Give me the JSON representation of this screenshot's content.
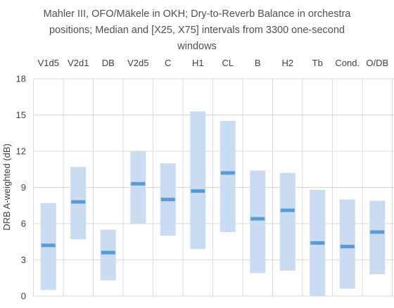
{
  "chart_data": {
    "type": "bar",
    "title_lines": [
      "Mahler III, OFO/Mäkele in OKH; Dry-to-Reverb Balance in orchestra",
      "positions; Median and [X25, X75] intervals from 3300 one-second",
      "windows"
    ],
    "xlabel": "",
    "ylabel": "DRB A-weighted (dB)",
    "ylim": [
      0,
      18
    ],
    "yticks": [
      0,
      3,
      6,
      9,
      12,
      15,
      18
    ],
    "grid": true,
    "categories": [
      "V1d5",
      "V2d1",
      "DB",
      "V2d5",
      "C",
      "H1",
      "CL",
      "B",
      "H2",
      "Tb",
      "Cond.",
      "O/DB"
    ],
    "series": [
      {
        "values_low": [
          0.5,
          4.7,
          1.3,
          6.0,
          5.0,
          3.9,
          5.3,
          1.9,
          2.1,
          0.0,
          0.6,
          1.8
        ]
      },
      {
        "values_median": [
          4.2,
          7.8,
          3.6,
          9.3,
          8.0,
          8.7,
          10.2,
          6.4,
          7.1,
          4.4,
          4.1,
          5.3
        ]
      },
      {
        "values_high": [
          7.7,
          10.7,
          5.5,
          12.0,
          11.0,
          15.3,
          14.5,
          10.4,
          10.2,
          8.8,
          8.0,
          7.9
        ]
      }
    ],
    "colors": {
      "band": "#c9dcf1",
      "median": "#5b9bd5",
      "grid": "#d9d9d9"
    }
  }
}
